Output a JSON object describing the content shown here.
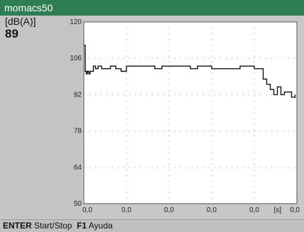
{
  "window": {
    "title": "momacs50"
  },
  "display": {
    "unit": "[dB(A)]",
    "value": "89"
  },
  "statusbar": {
    "key1": "ENTER",
    "action1": "Start/Stop",
    "key2": "F1",
    "action2": "Ayuda"
  },
  "colors": {
    "titlebar": "#2f7d52",
    "plot_bg": "#ffffff",
    "trace": "#111111"
  },
  "chart_data": {
    "type": "line",
    "title": "",
    "xlabel": "[s]",
    "ylabel": "",
    "ylim": [
      50,
      120
    ],
    "xlim": [
      0,
      6
    ],
    "yticks": [
      50,
      64,
      78,
      92,
      106,
      120
    ],
    "xtick_labels": [
      "0,0",
      "0,0",
      "0,0",
      "0,0",
      "0,0",
      "0,0"
    ],
    "grid": true,
    "series": [
      {
        "x": [
          0.0,
          0.04,
          0.07,
          0.1,
          0.14,
          0.18,
          0.22,
          0.27,
          0.33,
          0.4,
          0.5,
          0.6,
          0.75,
          0.9,
          1.05,
          1.2,
          1.4,
          1.6,
          1.8,
          2.0,
          2.2,
          2.4,
          2.6,
          2.8,
          3.0,
          3.2,
          3.4,
          3.6,
          3.8,
          4.0,
          4.2,
          4.4,
          4.6,
          4.8,
          4.95,
          5.05,
          5.15,
          5.25,
          5.35,
          5.45,
          5.55,
          5.65,
          5.75,
          5.85,
          5.95
        ],
        "y": [
          111,
          101,
          100,
          101,
          100,
          101,
          101,
          103,
          102,
          103,
          102,
          102,
          103,
          102,
          101,
          103,
          103,
          103,
          103,
          102,
          103,
          103,
          103,
          103,
          102,
          103,
          103,
          102,
          102,
          102,
          102,
          103,
          103,
          102,
          102,
          98,
          96,
          94,
          92,
          95,
          92,
          93,
          93,
          91,
          92
        ]
      }
    ]
  }
}
